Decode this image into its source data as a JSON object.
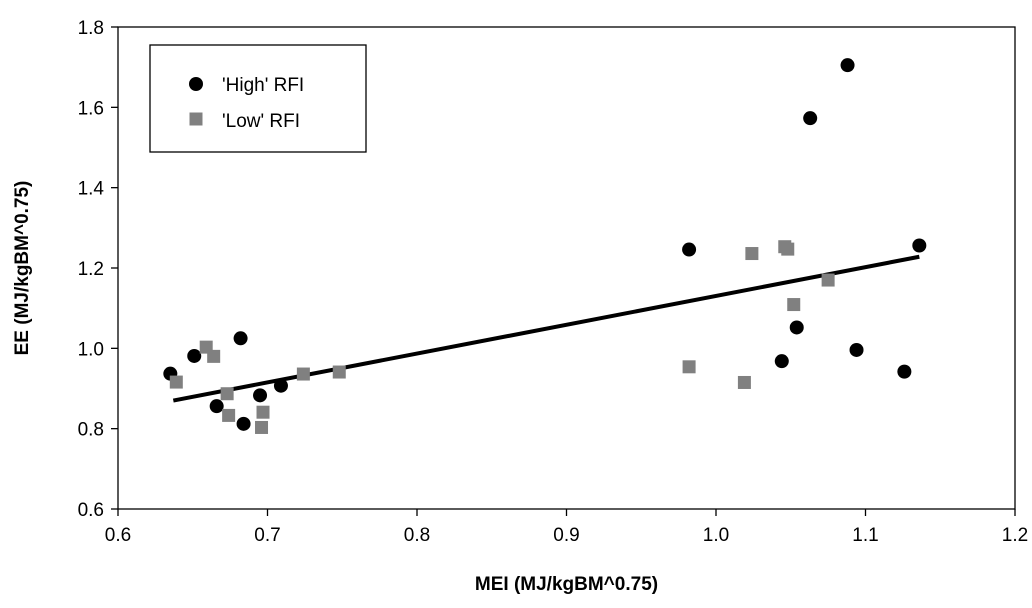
{
  "chart_data": {
    "type": "scatter",
    "title": "",
    "xlabel": "MEI (MJ/kgBM^0.75)",
    "ylabel": "EE (MJ/kgBM^0.75)",
    "xlim": [
      0.6,
      1.2
    ],
    "ylim": [
      0.6,
      1.8
    ],
    "xticks": [
      0.6,
      0.7,
      0.8,
      0.9,
      1.0,
      1.1,
      1.2
    ],
    "xtick_labels": [
      "0.6",
      "0.7",
      "0.8",
      "0.9",
      "1.0",
      "1.1",
      "1.2"
    ],
    "yticks": [
      0.6,
      0.8,
      1.0,
      1.2,
      1.4,
      1.6,
      1.8
    ],
    "ytick_labels": [
      "0.6",
      "0.8",
      "1.0",
      "1.2",
      "1.4",
      "1.6",
      "1.8"
    ],
    "grid": false,
    "legend_position": "top-left",
    "series": [
      {
        "name": "'High' RFI",
        "marker": "circle",
        "color": "#000000",
        "points": [
          [
            0.635,
            0.937
          ],
          [
            0.651,
            0.981
          ],
          [
            0.666,
            0.856
          ],
          [
            0.682,
            1.025
          ],
          [
            0.684,
            0.812
          ],
          [
            0.695,
            0.883
          ],
          [
            0.709,
            0.907
          ],
          [
            0.982,
            1.246
          ],
          [
            1.044,
            0.968
          ],
          [
            1.054,
            1.052
          ],
          [
            1.063,
            1.573
          ],
          [
            1.088,
            1.705
          ],
          [
            1.094,
            0.996
          ],
          [
            1.126,
            0.942
          ],
          [
            1.136,
            1.256
          ]
        ]
      },
      {
        "name": "'Low' RFI",
        "marker": "square",
        "color": "#808080",
        "points": [
          [
            0.639,
            0.916
          ],
          [
            0.659,
            1.003
          ],
          [
            0.664,
            0.98
          ],
          [
            0.673,
            0.887
          ],
          [
            0.674,
            0.833
          ],
          [
            0.696,
            0.803
          ],
          [
            0.697,
            0.841
          ],
          [
            0.724,
            0.936
          ],
          [
            0.748,
            0.941
          ],
          [
            0.982,
            0.954
          ],
          [
            1.019,
            0.915
          ],
          [
            1.024,
            1.236
          ],
          [
            1.046,
            1.253
          ],
          [
            1.048,
            1.247
          ],
          [
            1.052,
            1.109
          ],
          [
            1.075,
            1.17
          ]
        ]
      }
    ],
    "trendline": {
      "color": "#000000",
      "x": [
        0.637,
        1.136
      ],
      "y": [
        0.87,
        1.228
      ]
    }
  }
}
